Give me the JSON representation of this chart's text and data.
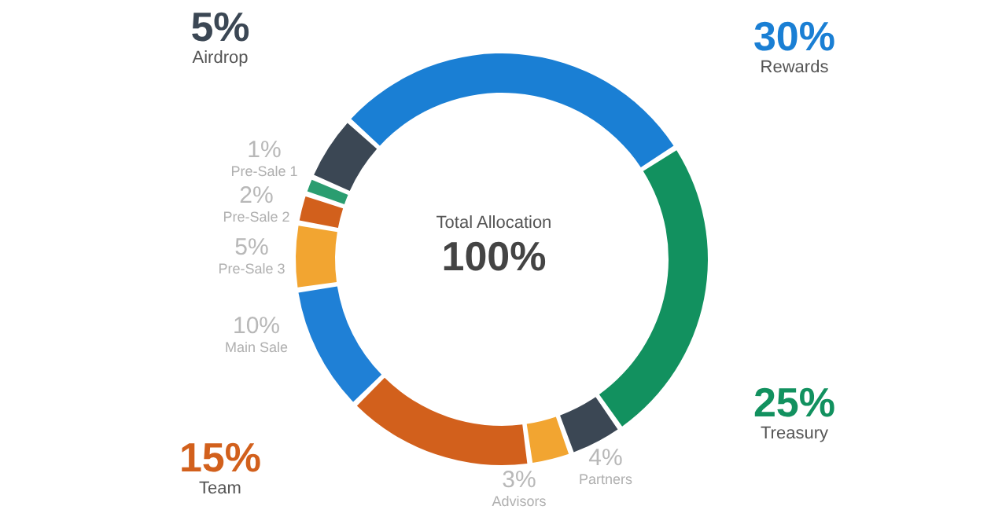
{
  "chart_data": {
    "type": "donut",
    "categories": [
      "Rewards",
      "Treasury",
      "Partners",
      "Advisors",
      "Team",
      "Main Sale",
      "Pre-Sale 3",
      "Pre-Sale 2",
      "Pre-Sale 1",
      "Airdrop"
    ],
    "values": [
      30,
      25,
      4,
      3,
      15,
      10,
      5,
      2,
      1,
      5
    ],
    "value_labels": [
      "30%",
      "25%",
      "4%",
      "3%",
      "15%",
      "10%",
      "5%",
      "2%",
      "1%",
      "5%"
    ],
    "colors": [
      "#1a7fd4",
      "#12915f",
      "#3b4754",
      "#f2a531",
      "#d2601c",
      "#1f80d6",
      "#f2a531",
      "#d2601c",
      "#2a9d70",
      "#3b4754"
    ],
    "annotations": [
      "Total Allocation",
      "100%"
    ]
  }
}
